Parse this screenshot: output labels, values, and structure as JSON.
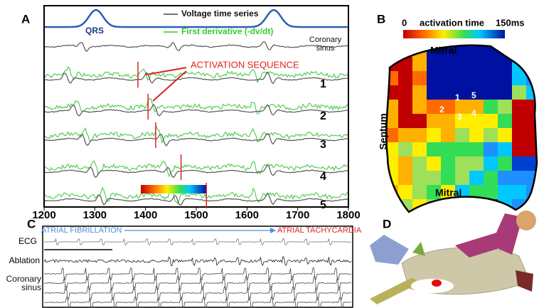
{
  "panel_a": {
    "label": "A",
    "legend_voltage": "Voltage time series",
    "legend_derivative": "First derivative (-dv/dt)",
    "qrs": "QRS",
    "cs_label": "Coronary sinus",
    "annotation": "ACTIVATION SEQUENCE",
    "channels": [
      "1",
      "2",
      "3",
      "4",
      "5"
    ],
    "xlim": [
      1200,
      1800
    ],
    "xticks": [
      1200,
      1300,
      1400,
      1500,
      1600,
      1700,
      1800
    ],
    "activation_times": [
      1385,
      1405,
      1420,
      1470,
      1520
    ]
  },
  "panel_b": {
    "label": "B",
    "colorbar_min": "0",
    "colorbar_title": "activation time",
    "colorbar_max": "150ms",
    "top_label": "Mitral",
    "bottom_label": "Mitral",
    "left_label": "Septum",
    "sites": [
      "1",
      "2",
      "3",
      "4",
      "5"
    ]
  },
  "panel_c": {
    "label": "C",
    "start_rhythm": "ATRIAL FIBRILLATION",
    "end_rhythm": "ATRIAL TACHYCARDIA",
    "rows": [
      "ECG",
      "Ablation",
      "Coronary sinus"
    ]
  },
  "panel_d": {
    "label": "D"
  }
}
